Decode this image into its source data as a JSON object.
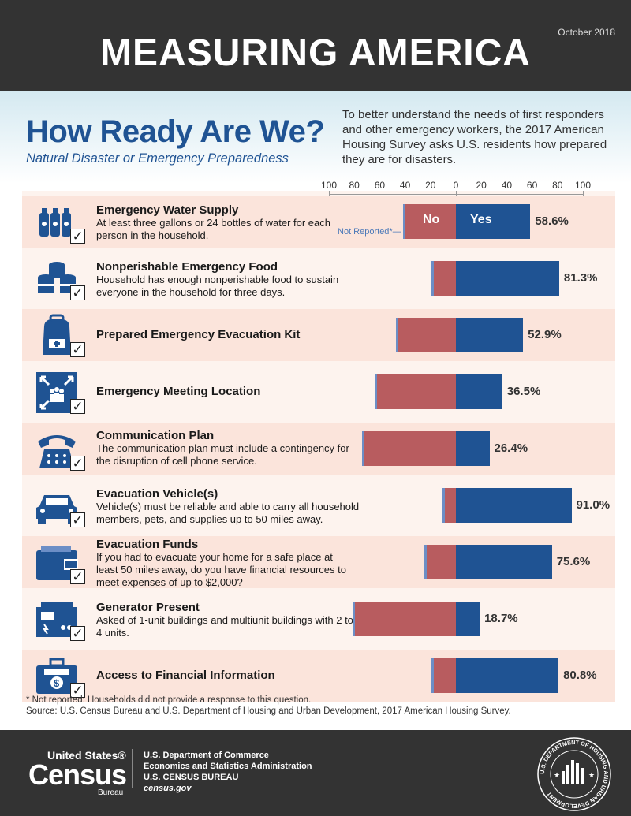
{
  "header": {
    "title": "MEASURING AMERICA",
    "date": "October 2018"
  },
  "intro": {
    "title": "How Ready Are We?",
    "subtitle": "Natural Disaster or Emergency Preparedness",
    "text": "To better understand the needs of first responders and other emergency workers, the 2017 American Housing Survey asks U.S. residents how prepared they are for disasters."
  },
  "chart_data": {
    "type": "bar",
    "orientation": "diverging-horizontal",
    "x_ticks_left": [
      "100",
      "80",
      "60",
      "40",
      "20"
    ],
    "x_ticks_right": [
      "0",
      "20",
      "40",
      "60",
      "80",
      "100"
    ],
    "xlim": [
      -100,
      100
    ],
    "legend_labels": {
      "no": "No",
      "yes": "Yes",
      "not_reported": "Not Reported*"
    },
    "colors": {
      "yes": "#1f5393",
      "no": "#b85c5f",
      "not_reported": "#6c8ec6"
    },
    "categories": [
      "Emergency Water Supply",
      "Nonperishable Emergency Food",
      "Prepared Emergency Evacuation Kit",
      "Emergency Meeting Location",
      "Communication Plan",
      "Evacuation Vehicle(s)",
      "Evacuation Funds",
      "Generator Present",
      "Access to Financial Information"
    ],
    "series": [
      {
        "name": "Yes",
        "values": [
          58.6,
          81.3,
          52.9,
          36.5,
          26.4,
          91.0,
          75.6,
          18.7,
          80.8
        ]
      },
      {
        "name": "No",
        "values": [
          39.9,
          17.2,
          45.6,
          62.0,
          72.1,
          8.6,
          22.9,
          79.8,
          17.7
        ]
      },
      {
        "name": "Not Reported*",
        "values": [
          1.5,
          1.5,
          1.5,
          1.5,
          1.5,
          0.4,
          1.5,
          1.5,
          1.5
        ]
      }
    ],
    "value_labels": [
      "58.6%",
      "81.3%",
      "52.9%",
      "36.5%",
      "26.4%",
      "91.0%",
      "75.6%",
      "18.7%",
      "80.8%"
    ]
  },
  "rows": [
    {
      "label": "Emergency Water Supply",
      "desc": "At least three gallons or 24 bottles of water for each person in the household.",
      "icon": "water-bottles-icon"
    },
    {
      "label": "Nonperishable Emergency Food",
      "desc": "Household has enough nonperishable food to sustain everyone in the household for three days.",
      "icon": "food-cans-icon"
    },
    {
      "label": "Prepared Emergency Evacuation Kit",
      "desc": "",
      "icon": "backpack-icon"
    },
    {
      "label": "Emergency Meeting Location",
      "desc": "",
      "icon": "meeting-point-icon"
    },
    {
      "label": "Communication Plan",
      "desc": "The communication plan must include a contingency for the disruption of cell phone service.",
      "icon": "telephone-icon"
    },
    {
      "label": "Evacuation Vehicle(s)",
      "desc": "Vehicle(s) must be reliable and able to carry all household members, pets, and supplies up to 50 miles away.",
      "icon": "car-icon"
    },
    {
      "label": "Evacuation Funds",
      "desc": "If you had to evacuate your home for a safe place at least 50 miles away, do you have financial resources to meet expenses of up to $2,000?",
      "icon": "wallet-icon"
    },
    {
      "label": "Generator Present",
      "desc": "Asked of 1-unit buildings and multiunit buildings with 2 to 4 units.",
      "icon": "generator-icon"
    },
    {
      "label": "Access to Financial Information",
      "desc": "",
      "icon": "briefcase-money-icon"
    }
  ],
  "footnote": {
    "line1": "* Not reported: Households did not provide a response to this question.",
    "line2": "Source: U.S. Census Bureau and U.S. Department of Housing and Urban Development, 2017 American Housing Survey."
  },
  "footer": {
    "logo_top": "United States®",
    "logo_main": "Census",
    "logo_bottom": "Bureau",
    "line1": "U.S. Department of Commerce",
    "line2": "Economics and Statistics Administration",
    "line3": "U.S. CENSUS BUREAU",
    "line4": "census.gov",
    "seal_text": "U.S. DEPARTMENT OF HOUSING AND URBAN DEVELOPMENT"
  }
}
